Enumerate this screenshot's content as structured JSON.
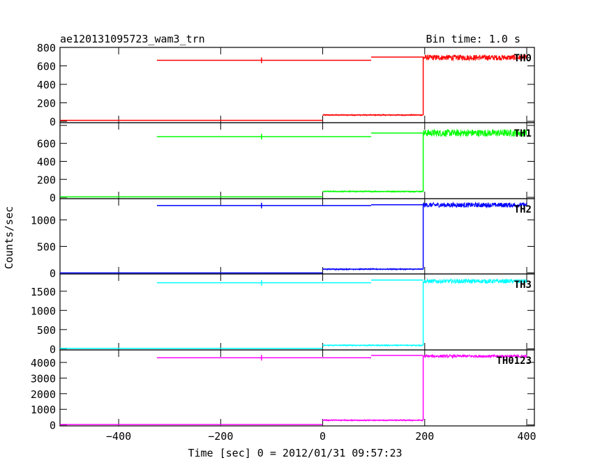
{
  "header": {
    "title": "ae120131095723_wam3_trn",
    "bin_time": "Bin time: 1.0 s"
  },
  "chart_data": {
    "type": "line",
    "xlabel": "Time [sec] 0 = 2012/01/31 09:57:23",
    "ylabel": "Counts/sec",
    "xlim": [
      -515,
      415
    ],
    "x_ticks": [
      -400,
      -200,
      0,
      200,
      400
    ],
    "x_tick_labels": [
      "−400",
      "−200",
      "0",
      "200",
      "400"
    ],
    "panels": [
      {
        "name": "TH0",
        "color": "#ff0000",
        "ylim": [
          -15,
          800
        ],
        "y_ticks": [
          0,
          200,
          400,
          600,
          800
        ],
        "y_tick_labels": [
          "0",
          "200",
          "400",
          "600",
          "800"
        ],
        "low_segments": [
          {
            "x": [
              -515,
              0
            ],
            "y": 10
          },
          {
            "x": [
              0,
              197
            ],
            "y": 68
          }
        ],
        "overlay_segments": [
          {
            "x": [
              -325,
              95
            ],
            "y": 660
          },
          {
            "x": [
              95,
              197
            ],
            "y": 695
          }
        ],
        "burst": {
          "x": [
            197,
            400
          ],
          "y": 690,
          "noise": 30
        }
      },
      {
        "name": "TH1",
        "color": "#00ff00",
        "ylim": [
          -15,
          830
        ],
        "y_ticks": [
          0,
          200,
          400,
          600,
          800
        ],
        "y_tick_labels": [
          "0",
          "200",
          "400",
          "600",
          ""
        ],
        "low_segments": [
          {
            "x": [
              -515,
              0
            ],
            "y": 5
          },
          {
            "x": [
              0,
              197
            ],
            "y": 65
          }
        ],
        "overlay_segments": [
          {
            "x": [
              -325,
              95
            ],
            "y": 675
          },
          {
            "x": [
              95,
              197
            ],
            "y": 715
          }
        ],
        "burst": {
          "x": [
            197,
            400
          ],
          "y": 715,
          "noise": 40
        }
      },
      {
        "name": "TH2",
        "color": "#0000ff",
        "ylim": [
          -20,
          1400
        ],
        "y_ticks": [
          0,
          500,
          1000
        ],
        "y_tick_labels": [
          "0",
          "500",
          "1000"
        ],
        "low_segments": [
          {
            "x": [
              -515,
              0
            ],
            "y": 0
          },
          {
            "x": [
              0,
              197
            ],
            "y": 70
          }
        ],
        "overlay_segments": [
          {
            "x": [
              -325,
              95
            ],
            "y": 1270
          },
          {
            "x": [
              95,
              197
            ],
            "y": 1285
          }
        ],
        "burst": {
          "x": [
            197,
            400
          ],
          "y": 1280,
          "noise": 45
        }
      },
      {
        "name": "TH3",
        "color": "#00ffff",
        "ylim": [
          -30,
          1950
        ],
        "y_ticks": [
          0,
          500,
          1000,
          1500
        ],
        "y_tick_labels": [
          "0",
          "500",
          "1000",
          "1500"
        ],
        "low_segments": [
          {
            "x": [
              -515,
              0
            ],
            "y": 10
          },
          {
            "x": [
              0,
              197
            ],
            "y": 90
          }
        ],
        "overlay_segments": [
          {
            "x": [
              -325,
              95
            ],
            "y": 1720
          },
          {
            "x": [
              95,
              197
            ],
            "y": 1790
          }
        ],
        "burst": {
          "x": [
            197,
            400
          ],
          "y": 1760,
          "noise": 55
        }
      },
      {
        "name": "TH0123",
        "color": "#ff00ff",
        "ylim": [
          -60,
          4800
        ],
        "y_ticks": [
          0,
          1000,
          2000,
          3000,
          4000
        ],
        "y_tick_labels": [
          "0",
          "1000",
          "2000",
          "3000",
          "4000"
        ],
        "low_segments": [
          {
            "x": [
              -515,
              0
            ],
            "y": 30
          },
          {
            "x": [
              0,
              197
            ],
            "y": 300
          }
        ],
        "overlay_segments": [
          {
            "x": [
              -325,
              95
            ],
            "y": 4300
          },
          {
            "x": [
              95,
              197
            ],
            "y": 4450
          }
        ],
        "burst": {
          "x": [
            197,
            400
          ],
          "y": 4400,
          "noise": 90
        }
      }
    ]
  }
}
